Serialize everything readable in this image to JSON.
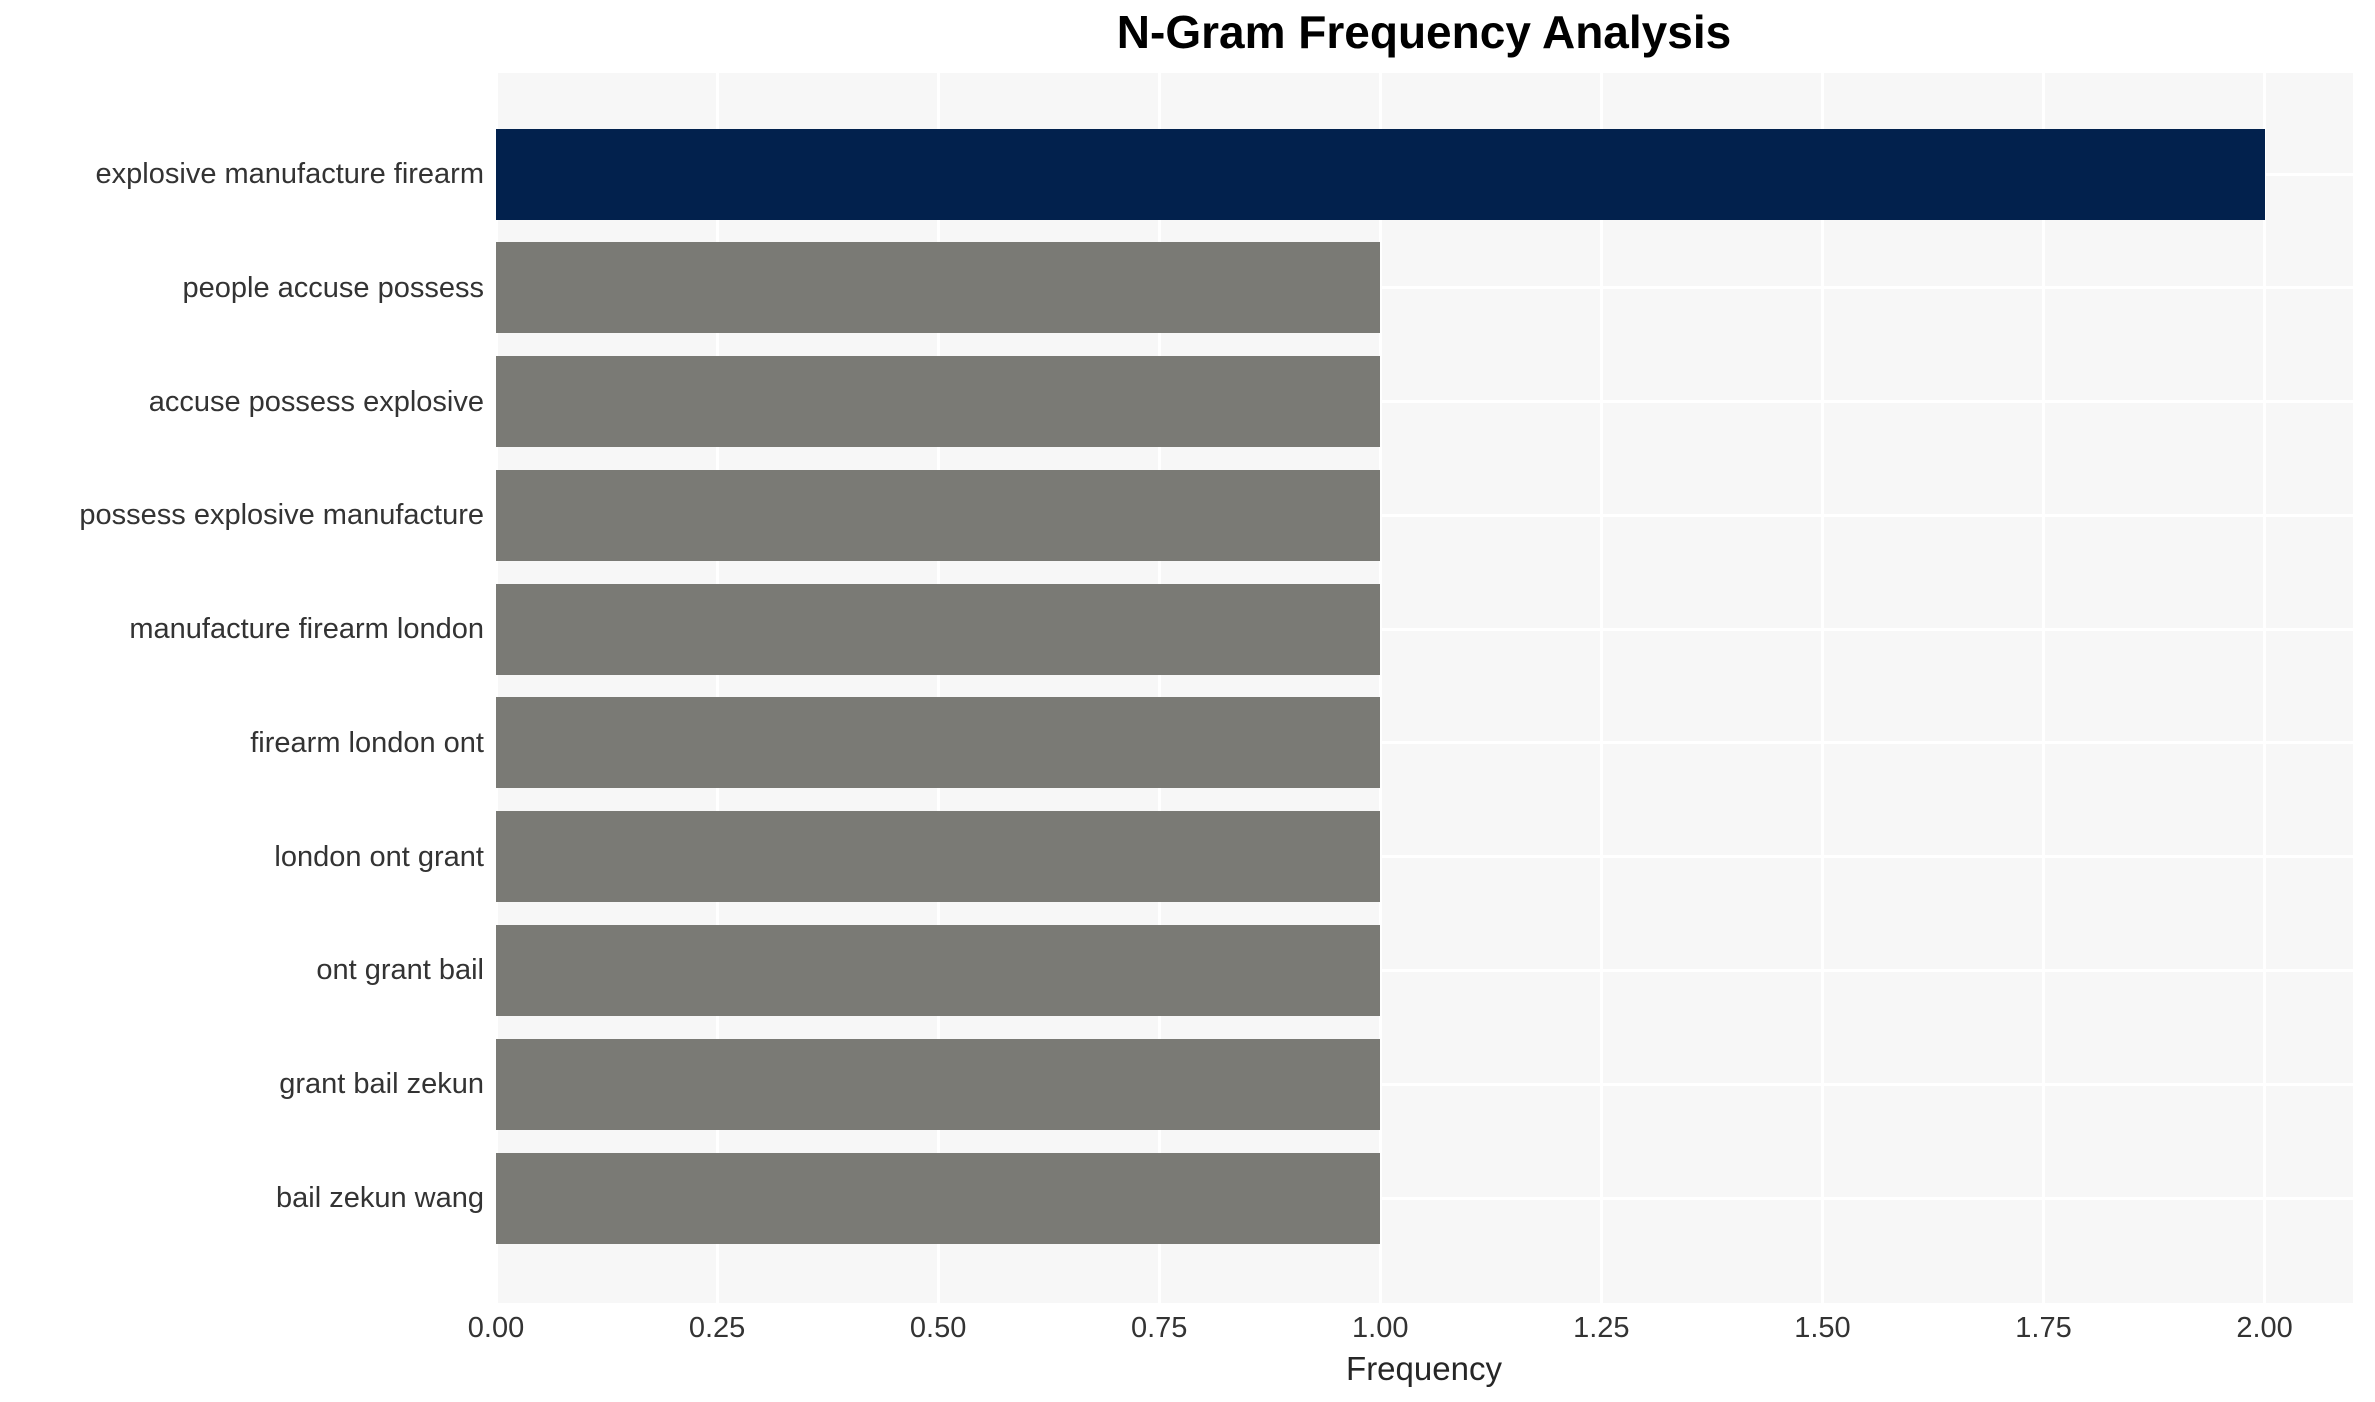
{
  "chart_data": {
    "type": "bar",
    "orientation": "horizontal",
    "title": "N-Gram Frequency Analysis",
    "xlabel": "Frequency",
    "categories": [
      "explosive manufacture firearm",
      "people accuse possess",
      "accuse possess explosive",
      "possess explosive manufacture",
      "manufacture firearm london",
      "firearm london ont",
      "london ont grant",
      "ont grant bail",
      "grant bail zekun",
      "bail zekun wang"
    ],
    "values": [
      2,
      1,
      1,
      1,
      1,
      1,
      1,
      1,
      1,
      1
    ],
    "bar_colors": [
      "#02214d",
      "#7a7a75",
      "#7a7a75",
      "#7a7a75",
      "#7a7a75",
      "#7a7a75",
      "#7a7a75",
      "#7a7a75",
      "#7a7a75",
      "#7a7a75"
    ],
    "xlim": [
      0,
      2.1
    ],
    "xticks": [
      0,
      0.25,
      0.5,
      0.75,
      1,
      1.25,
      1.5,
      1.75,
      2
    ],
    "xtick_labels": [
      "0.00",
      "0.25",
      "0.50",
      "0.75",
      "1.00",
      "1.25",
      "1.50",
      "1.75",
      "2.00"
    ],
    "grid": true,
    "legend_position": "none",
    "colors": {
      "highlight_bar": "#02214d",
      "default_bar": "#7a7a75",
      "plot_background": "#f7f7f7",
      "gridline": "#ffffff",
      "tick_text": "#333333",
      "title_text": "#000000"
    }
  }
}
